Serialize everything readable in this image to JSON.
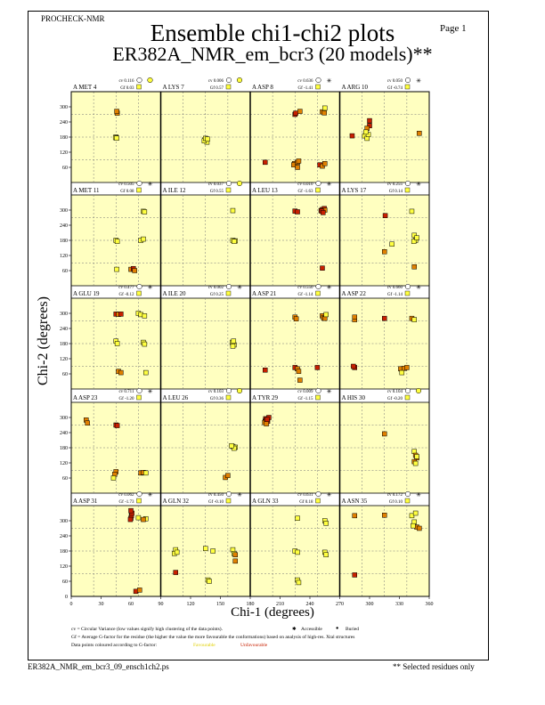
{
  "header": {
    "program": "PROCHECK-NMR",
    "page_label": "Page 1",
    "title": "Ensemble chi1-chi2 plots",
    "subtitle": "ER382A_NMR_em_bcr3 (20 models)**"
  },
  "footer": {
    "filename": "ER382A_NMR_em_bcr3_09_ensch1ch2.ps",
    "selected_note": "** Selected residues only"
  },
  "legend": {
    "line1": "cv = Circular Variance (low values signify high clustering of the data points).",
    "accessible": "Accessible",
    "buried": "Buried",
    "line2": "Gf = Average G-factor for the residue (the higher the value the more favourable the conformations) based on analysis of high-res. Xtal structures",
    "line3": "Data points coloured according to G-factor:",
    "favourable": "Favourable",
    "unfavourable": "Unfavourable"
  },
  "colors": {
    "background": "#ffffc0",
    "favourable": "#ffff40",
    "unfavourable": "#c82000"
  },
  "chart_data": {
    "type": "scatter",
    "xlabel": "Chi-1 (degrees)",
    "ylabel": "Chi-2 (degrees)",
    "xlim": [
      0,
      360
    ],
    "ylim": [
      0,
      360
    ],
    "x_ticks": [
      "0",
      "30",
      "60",
      "90",
      "120",
      "150",
      "180",
      "210",
      "240",
      "270",
      "300",
      "330",
      "360"
    ],
    "y_ticks": [
      "60",
      "120",
      "180",
      "240",
      "300"
    ],
    "panels": [
      {
        "label": "A MET 4",
        "cv": "0.116",
        "gf": "0.03",
        "access": "buried",
        "points": [
          [
            185,
            275,
            "o"
          ],
          [
            183,
            282,
            "o"
          ],
          [
            180,
            180,
            "y"
          ],
          [
            178,
            178,
            "y"
          ],
          [
            183,
            176,
            "y"
          ]
        ]
      },
      {
        "label": "A LYS 7",
        "cv": "0.006",
        "gf": "0.57",
        "access": "buried",
        "points": [
          [
            178,
            170,
            "y"
          ],
          [
            183,
            168,
            "y"
          ],
          [
            186,
            160,
            "y"
          ],
          [
            175,
            165,
            "y"
          ],
          [
            180,
            175,
            "y"
          ],
          [
            188,
            172,
            "y"
          ]
        ]
      },
      {
        "label": "A ASP 8",
        "cv": "0.636",
        "gf": "-1.41",
        "access": "accessible",
        "points": [
          [
            180,
            270,
            "r"
          ],
          [
            183,
            275,
            "r"
          ],
          [
            200,
            282,
            "o"
          ],
          [
            290,
            280,
            "o"
          ],
          [
            298,
            276,
            "o"
          ],
          [
            300,
            295,
            "y"
          ],
          [
            178,
            75,
            "o"
          ],
          [
            175,
            70,
            "o"
          ],
          [
            190,
            80,
            "o"
          ],
          [
            195,
            85,
            "o"
          ],
          [
            60,
            80,
            "r"
          ],
          [
            280,
            70,
            "r"
          ],
          [
            290,
            65,
            "o"
          ],
          [
            300,
            75,
            "o"
          ],
          [
            190,
            60,
            "o"
          ]
        ]
      },
      {
        "label": "A ARG 10",
        "cv": "0.050",
        "gf": "-0.74",
        "access": "accessible",
        "points": [
          [
            120,
            245,
            "r"
          ],
          [
            120,
            225,
            "r"
          ],
          [
            110,
            215,
            "o"
          ],
          [
            100,
            185,
            "y"
          ],
          [
            110,
            175,
            "y"
          ],
          [
            115,
            190,
            "y"
          ],
          [
            50,
            185,
            "r"
          ],
          [
            320,
            195,
            "o"
          ],
          [
            105,
            200,
            "y"
          ]
        ]
      },
      {
        "label": "A MET 11",
        "cv": "0.505",
        "gf": "0.08",
        "access": "accessible",
        "points": [
          [
            290,
            295,
            "y"
          ],
          [
            295,
            293,
            "y"
          ],
          [
            180,
            180,
            "y"
          ],
          [
            185,
            176,
            "y"
          ],
          [
            183,
            65,
            "y"
          ],
          [
            280,
            180,
            "y"
          ],
          [
            290,
            185,
            "y"
          ],
          [
            240,
            65,
            "o"
          ],
          [
            250,
            68,
            "r"
          ],
          [
            255,
            60,
            "o"
          ]
        ]
      },
      {
        "label": "A ILE 12",
        "cv": "0.037",
        "gf": "0.55",
        "access": "buried",
        "points": [
          [
            290,
            180,
            "y"
          ],
          [
            300,
            178,
            "y"
          ],
          [
            295,
            176,
            "y"
          ],
          [
            290,
            298,
            "y"
          ]
        ]
      },
      {
        "label": "A LEU 13",
        "cv": "0.010",
        "gf": "-1.63",
        "access": "accessible",
        "points": [
          [
            180,
            296,
            "r"
          ],
          [
            190,
            293,
            "r"
          ],
          [
            285,
            298,
            "r"
          ],
          [
            290,
            302,
            "r"
          ],
          [
            298,
            306,
            "r"
          ],
          [
            300,
            300,
            "o"
          ],
          [
            288,
            296,
            "r"
          ],
          [
            293,
            290,
            "r"
          ],
          [
            290,
            70,
            "r"
          ]
        ]
      },
      {
        "label": "A LYS 17",
        "cv": "0.255",
        "gf": "0.14",
        "access": "accessible",
        "points": [
          [
            183,
            278,
            "r"
          ],
          [
            290,
            295,
            "y"
          ],
          [
            300,
            200,
            "y"
          ],
          [
            305,
            180,
            "y"
          ],
          [
            298,
            176,
            "y"
          ],
          [
            310,
            190,
            "y"
          ],
          [
            210,
            165,
            "y"
          ],
          [
            180,
            135,
            "o"
          ],
          [
            300,
            75,
            "o"
          ]
        ]
      },
      {
        "label": "A GLU 19",
        "cv": "0.477",
        "gf": "-0.12",
        "access": "accessible",
        "points": [
          [
            180,
            297,
            "r"
          ],
          [
            190,
            296,
            "o"
          ],
          [
            200,
            297,
            "r"
          ],
          [
            270,
            300,
            "y"
          ],
          [
            280,
            295,
            "y"
          ],
          [
            295,
            290,
            "y"
          ],
          [
            290,
            185,
            "y"
          ],
          [
            295,
            178,
            "y"
          ],
          [
            180,
            190,
            "y"
          ],
          [
            185,
            180,
            "y"
          ],
          [
            190,
            70,
            "o"
          ],
          [
            200,
            65,
            "o"
          ],
          [
            300,
            65,
            "y"
          ]
        ]
      },
      {
        "label": "A ILE 20",
        "cv": "0.002",
        "gf": "0.25",
        "access": "accessible",
        "points": [
          [
            290,
            180,
            "y"
          ],
          [
            295,
            175,
            "y"
          ],
          [
            288,
            185,
            "y"
          ],
          [
            293,
            190,
            "y"
          ],
          [
            290,
            170,
            "y"
          ]
        ]
      },
      {
        "label": "A ASP 21",
        "cv": "0.550",
        "gf": "-1.14",
        "access": "accessible",
        "points": [
          [
            180,
            285,
            "o"
          ],
          [
            185,
            278,
            "o"
          ],
          [
            290,
            290,
            "o"
          ],
          [
            295,
            282,
            "o"
          ],
          [
            300,
            280,
            "o"
          ],
          [
            305,
            295,
            "y"
          ],
          [
            180,
            85,
            "r"
          ],
          [
            190,
            80,
            "o"
          ],
          [
            195,
            70,
            "o"
          ],
          [
            270,
            85,
            "r"
          ],
          [
            60,
            75,
            "r"
          ],
          [
            200,
            35,
            "o"
          ]
        ]
      },
      {
        "label": "A ASP 22",
        "cv": "0.660",
        "gf": "-1.14",
        "access": "accessible",
        "points": [
          [
            60,
            275,
            "o"
          ],
          [
            60,
            285,
            "o"
          ],
          [
            180,
            280,
            "r"
          ],
          [
            290,
            280,
            "o"
          ],
          [
            300,
            275,
            "y"
          ],
          [
            60,
            85,
            "r"
          ],
          [
            55,
            90,
            "r"
          ],
          [
            245,
            80,
            "o"
          ],
          [
            260,
            82,
            "o"
          ],
          [
            250,
            65,
            "y"
          ],
          [
            270,
            85,
            "o"
          ]
        ]
      },
      {
        "label": "A ASP 23",
        "cv": "0.711",
        "gf": "-1.20",
        "access": "accessible",
        "points": [
          [
            60,
            290,
            "o"
          ],
          [
            65,
            278,
            "o"
          ],
          [
            180,
            270,
            "r"
          ],
          [
            185,
            268,
            "r"
          ],
          [
            180,
            85,
            "o"
          ],
          [
            175,
            75,
            "o"
          ],
          [
            170,
            60,
            "y"
          ],
          [
            280,
            80,
            "o"
          ],
          [
            290,
            82,
            "o"
          ],
          [
            300,
            80,
            "y"
          ]
        ]
      },
      {
        "label": "A LEU 26",
        "cv": "0.103",
        "gf": "0.36",
        "access": "buried",
        "points": [
          [
            290,
            185,
            "y"
          ],
          [
            300,
            182,
            "y"
          ],
          [
            295,
            178,
            "y"
          ],
          [
            285,
            188,
            "y"
          ],
          [
            260,
            62,
            "o"
          ],
          [
            270,
            70,
            "o"
          ]
        ]
      },
      {
        "label": "A TYR 29",
        "cv": "0.009",
        "gf": "-1.15",
        "access": "accessible",
        "points": [
          [
            60,
            285,
            "r"
          ],
          [
            62,
            295,
            "r"
          ],
          [
            65,
            290,
            "r"
          ],
          [
            70,
            285,
            "r"
          ],
          [
            58,
            280,
            "o"
          ],
          [
            75,
            300,
            "r"
          ],
          [
            65,
            275,
            "o"
          ],
          [
            68,
            292,
            "r"
          ]
        ]
      },
      {
        "label": "A HIS 30",
        "cv": "0.104",
        "gf": "-0.20",
        "access": "buried",
        "points": [
          [
            300,
            165,
            "y"
          ],
          [
            305,
            150,
            "o"
          ],
          [
            310,
            140,
            "o"
          ],
          [
            300,
            125,
            "o"
          ],
          [
            305,
            118,
            "y"
          ],
          [
            310,
            145,
            "y"
          ],
          [
            180,
            235,
            "o"
          ]
        ]
      },
      {
        "label": "A ASP 31",
        "cv": "0.062",
        "gf": "-1.73",
        "access": "accessible",
        "points": [
          [
            240,
            310,
            "r"
          ],
          [
            242,
            320,
            "r"
          ],
          [
            244,
            330,
            "r"
          ],
          [
            240,
            340,
            "r"
          ],
          [
            238,
            305,
            "r"
          ],
          [
            270,
            312,
            "y"
          ],
          [
            300,
            308,
            "y"
          ],
          [
            290,
            305,
            "o"
          ],
          [
            260,
            20,
            "r"
          ],
          [
            275,
            25,
            "o"
          ]
        ]
      },
      {
        "label": "A GLN 32",
        "cv": "0.450",
        "gf": "-0.10",
        "access": "accessible",
        "points": [
          [
            60,
            185,
            "y"
          ],
          [
            55,
            170,
            "y"
          ],
          [
            65,
            175,
            "y"
          ],
          [
            180,
            190,
            "y"
          ],
          [
            210,
            180,
            "y"
          ],
          [
            290,
            185,
            "y"
          ],
          [
            295,
            170,
            "y"
          ],
          [
            300,
            165,
            "o"
          ],
          [
            300,
            140,
            "o"
          ],
          [
            60,
            95,
            "r"
          ],
          [
            190,
            65,
            "y"
          ],
          [
            195,
            60,
            "y"
          ]
        ]
      },
      {
        "label": "A GLN 33",
        "cv": "0.631",
        "gf": "0.18",
        "access": "accessible",
        "points": [
          [
            180,
            180,
            "y"
          ],
          [
            190,
            175,
            "y"
          ],
          [
            300,
            300,
            "y"
          ],
          [
            305,
            290,
            "y"
          ],
          [
            300,
            175,
            "y"
          ],
          [
            305,
            165,
            "y"
          ],
          [
            190,
            65,
            "y"
          ],
          [
            195,
            55,
            "y"
          ],
          [
            190,
            310,
            "y"
          ]
        ]
      },
      {
        "label": "A ASN 35",
        "cv": "0.172",
        "gf": "0.10",
        "access": "accessible",
        "points": [
          [
            60,
            320,
            "o"
          ],
          [
            180,
            322,
            "o"
          ],
          [
            290,
            320,
            "y"
          ],
          [
            300,
            295,
            "y"
          ],
          [
            310,
            275,
            "o"
          ],
          [
            320,
            270,
            "o"
          ],
          [
            60,
            85,
            "r"
          ],
          [
            295,
            280,
            "y"
          ],
          [
            305,
            330,
            "y"
          ]
        ]
      }
    ]
  }
}
